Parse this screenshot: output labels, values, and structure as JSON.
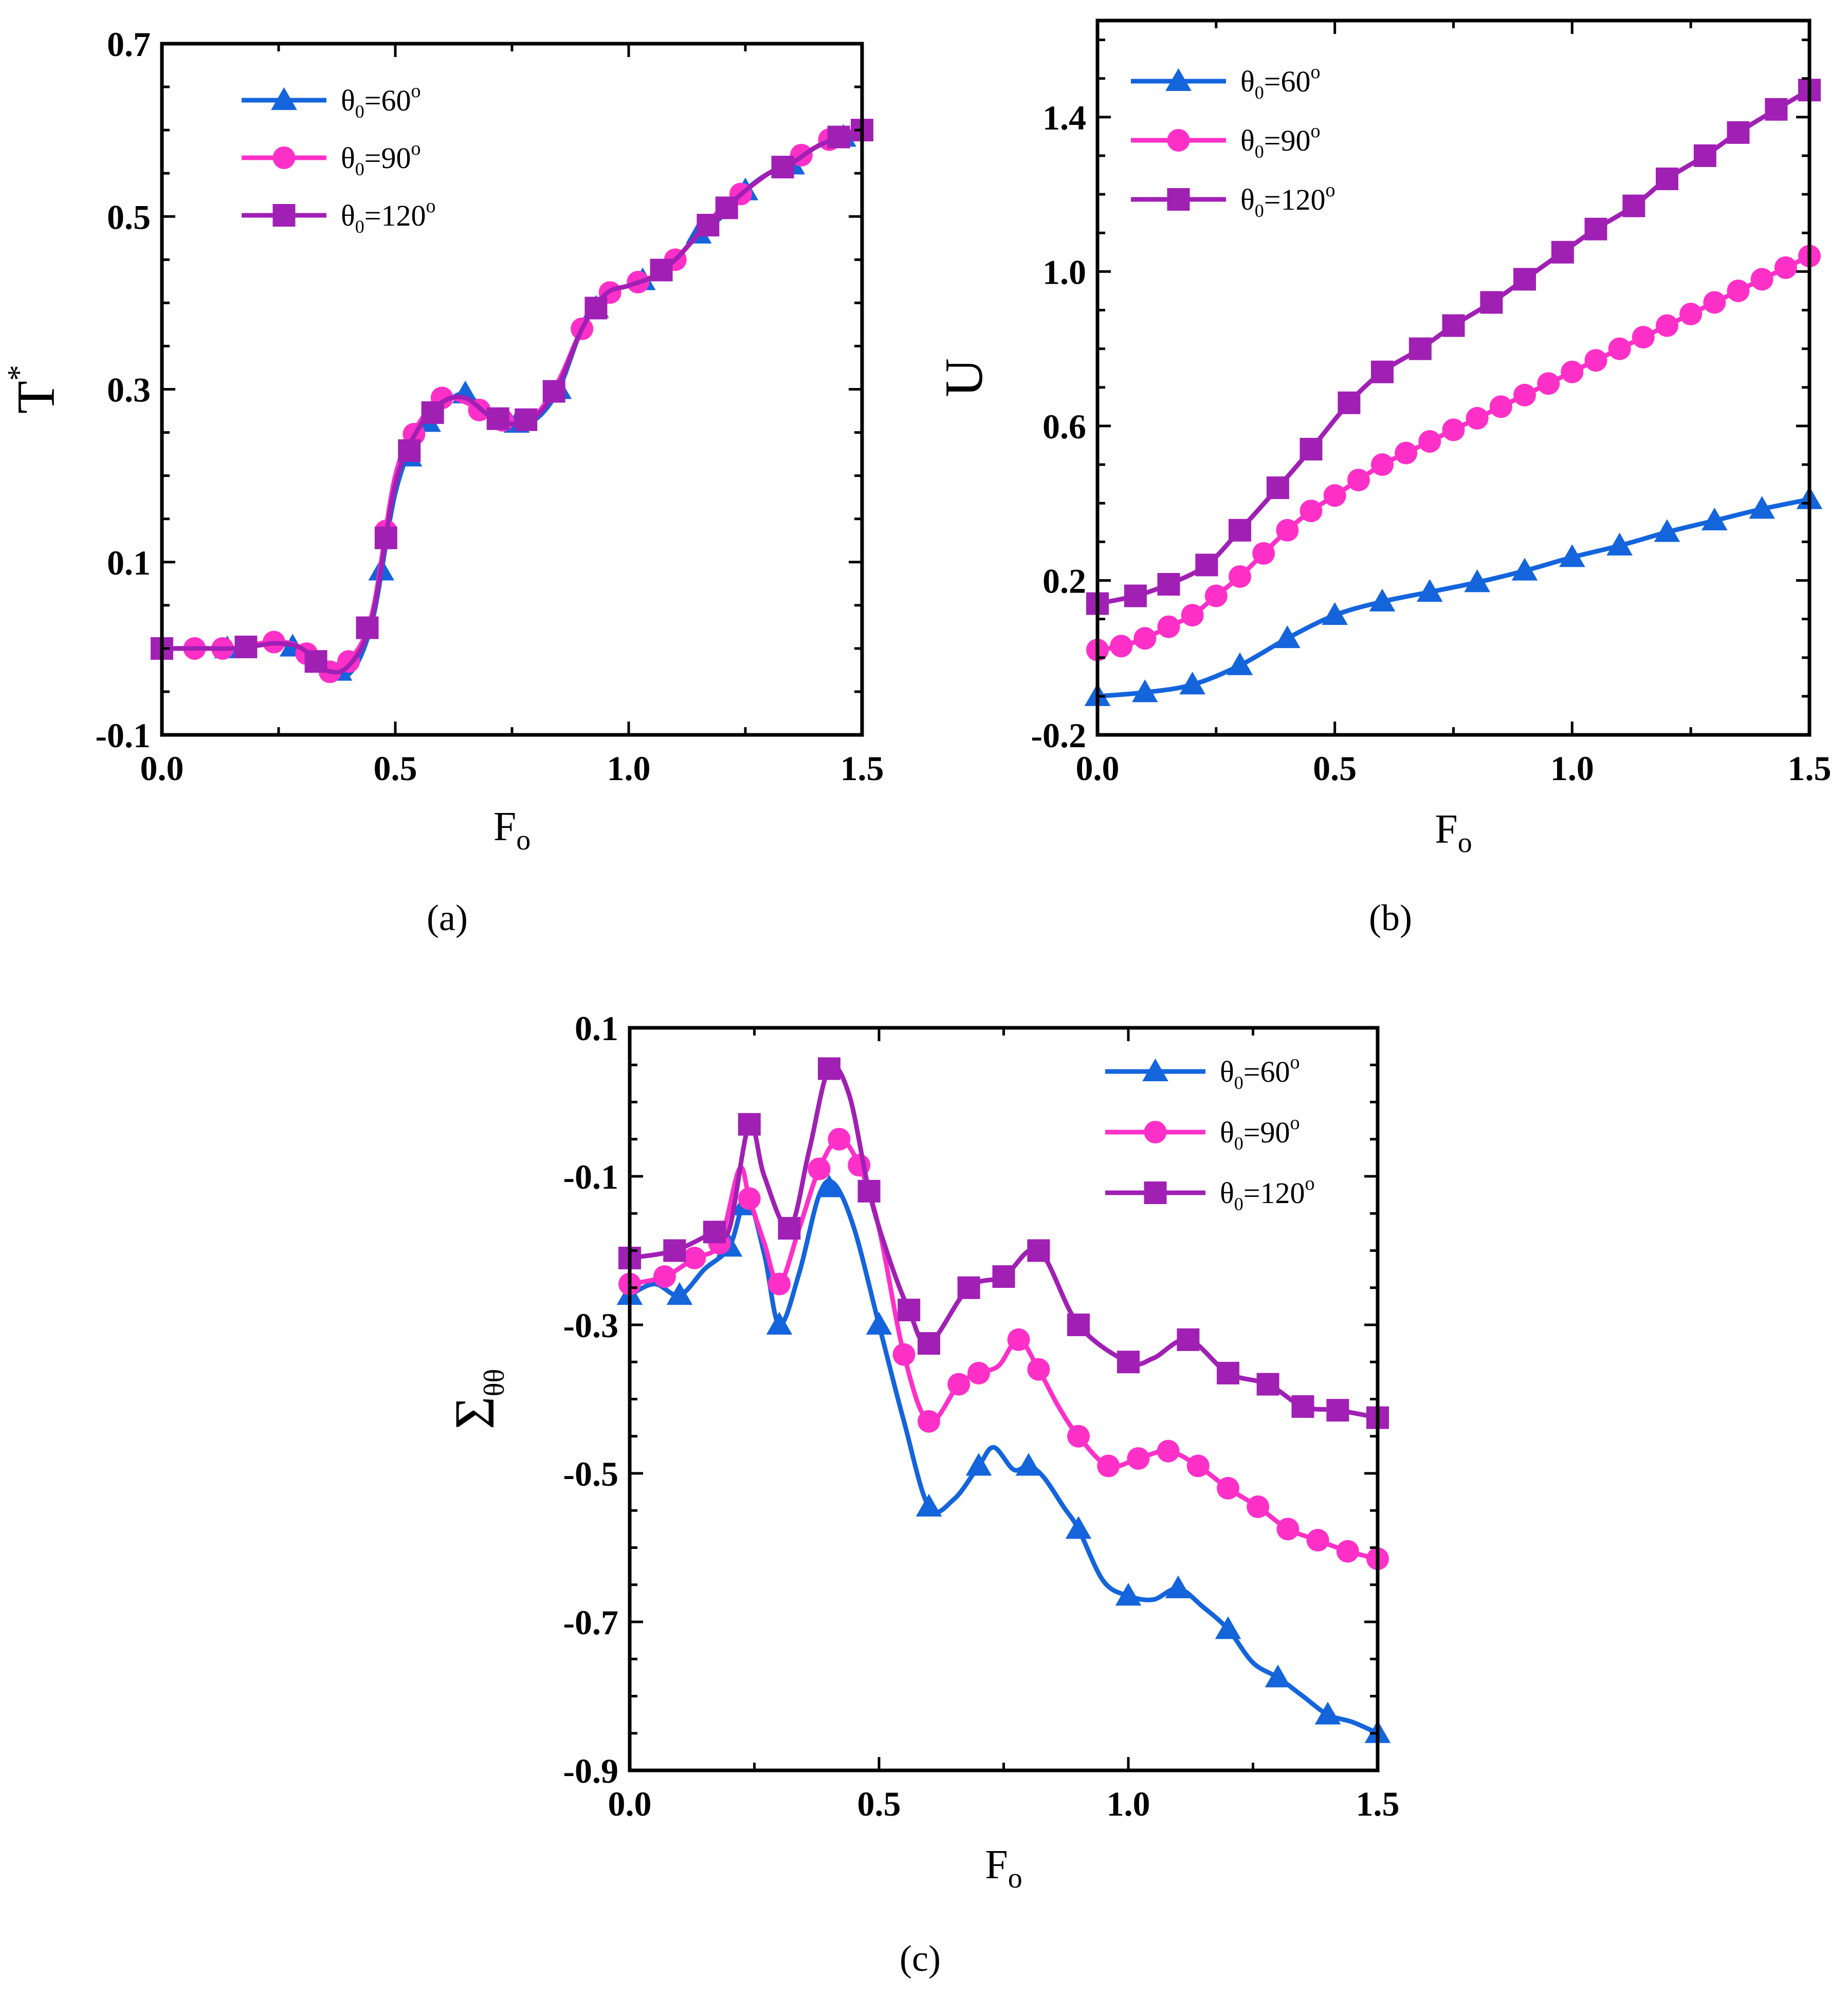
{
  "colors": {
    "s60": "#1464dc",
    "s90": "#ff30c8",
    "s120": "#a020b4"
  },
  "chart_data": [
    {
      "id": "a",
      "panel_label": "(a)",
      "type": "line",
      "xlabel": {
        "main": "F",
        "sub": "o"
      },
      "ylabel": {
        "main": "T",
        "sup": "*"
      },
      "xlim": [
        0,
        1.5
      ],
      "ylim": [
        -0.1,
        0.7
      ],
      "xticks": [
        "0.0",
        "0.5",
        "1.0",
        "1.5"
      ],
      "yticks": [
        "-0.1",
        "0.1",
        "0.3",
        "0.5",
        "0.7"
      ],
      "legend": "top-left",
      "series": [
        {
          "name": "θ0=60°",
          "lg_main": "θ",
          "lg_sub": "0",
          "lg_rest": "=60",
          "lg_sup": "o",
          "marker": "triangle",
          "color_key": "s60",
          "x": [
            0,
            0.05,
            0.1,
            0.15,
            0.2,
            0.25,
            0.3,
            0.35,
            0.4,
            0.45,
            0.5,
            0.55,
            0.6,
            0.65,
            0.7,
            0.75,
            0.8,
            0.85,
            0.9,
            0.95,
            1.0,
            1.05,
            1.1,
            1.15,
            1.2,
            1.25,
            1.3,
            1.35,
            1.4,
            1.45,
            1.5
          ],
          "y": [
            0.0,
            0.0,
            0.0,
            0.0,
            0.005,
            0.005,
            0.0,
            -0.02,
            -0.03,
            0.03,
            0.18,
            0.25,
            0.28,
            0.295,
            0.27,
            0.26,
            0.265,
            0.3,
            0.37,
            0.41,
            0.42,
            0.43,
            0.45,
            0.48,
            0.5,
            0.53,
            0.55,
            0.56,
            0.58,
            0.59,
            0.6
          ],
          "marker_x": [
            0.14,
            0.28,
            0.38,
            0.47,
            0.53,
            0.57,
            0.65,
            0.76,
            0.85,
            0.93,
            1.03,
            1.15,
            1.25,
            1.35,
            1.46
          ]
        },
        {
          "name": "θ0=90°",
          "lg_main": "θ",
          "lg_sub": "0",
          "lg_rest": "=90",
          "lg_sup": "o",
          "marker": "circle",
          "color_key": "s90",
          "x": [
            0,
            0.05,
            0.1,
            0.15,
            0.2,
            0.25,
            0.3,
            0.35,
            0.4,
            0.45,
            0.5,
            0.55,
            0.6,
            0.65,
            0.7,
            0.75,
            0.8,
            0.85,
            0.9,
            0.95,
            1.0,
            1.05,
            1.1,
            1.15,
            1.2,
            1.25,
            1.3,
            1.35,
            1.4,
            1.45,
            1.5
          ],
          "y": [
            0.0,
            0.0,
            0.0,
            0.0,
            0.005,
            0.008,
            0.0,
            -0.03,
            -0.015,
            0.04,
            0.2,
            0.26,
            0.29,
            0.285,
            0.27,
            0.26,
            0.27,
            0.31,
            0.37,
            0.41,
            0.42,
            0.43,
            0.45,
            0.48,
            0.51,
            0.53,
            0.55,
            0.565,
            0.58,
            0.595,
            0.6
          ],
          "marker_x": [
            0,
            0.07,
            0.13,
            0.24,
            0.31,
            0.36,
            0.4,
            0.48,
            0.54,
            0.6,
            0.68,
            0.73,
            0.9,
            0.96,
            1.02,
            1.1,
            1.24,
            1.37,
            1.43,
            1.5
          ]
        },
        {
          "name": "θ0=120°",
          "lg_main": "θ",
          "lg_sub": "0",
          "lg_rest": "=120",
          "lg_sup": "o",
          "marker": "square",
          "color_key": "s120",
          "x": [
            0,
            0.05,
            0.1,
            0.15,
            0.2,
            0.25,
            0.3,
            0.35,
            0.4,
            0.45,
            0.5,
            0.55,
            0.6,
            0.65,
            0.7,
            0.75,
            0.8,
            0.85,
            0.9,
            0.95,
            1.0,
            1.05,
            1.1,
            1.15,
            1.2,
            1.25,
            1.3,
            1.35,
            1.4,
            1.45,
            1.5
          ],
          "y": [
            0.0,
            0.0,
            0.0,
            0.0,
            0.003,
            0.006,
            0.0,
            -0.025,
            -0.02,
            0.035,
            0.19,
            0.255,
            0.285,
            0.29,
            0.27,
            0.26,
            0.268,
            0.305,
            0.37,
            0.41,
            0.42,
            0.43,
            0.45,
            0.48,
            0.505,
            0.53,
            0.55,
            0.562,
            0.58,
            0.592,
            0.6
          ],
          "marker_x": [
            0,
            0.18,
            0.33,
            0.44,
            0.48,
            0.53,
            0.58,
            0.72,
            0.78,
            0.84,
            0.93,
            1.07,
            1.17,
            1.21,
            1.33,
            1.45,
            1.5
          ]
        }
      ]
    },
    {
      "id": "b",
      "panel_label": "(b)",
      "type": "line",
      "xlabel": {
        "main": "F",
        "sub": "o"
      },
      "ylabel": {
        "main": "U"
      },
      "xlim": [
        0,
        1.5
      ],
      "ylim": [
        -0.2,
        1.65
      ],
      "xticks": [
        "0.0",
        "0.5",
        "1.0",
        "1.5"
      ],
      "yticks": [
        "-0.2",
        "0.2",
        "0.6",
        "1.0",
        "1.4"
      ],
      "legend": "top-left",
      "series": [
        {
          "name": "θ0=60°",
          "lg_main": "θ",
          "lg_sub": "0",
          "lg_rest": "=60",
          "lg_sup": "o",
          "marker": "triangle",
          "color_key": "s60",
          "x": [
            0,
            0.1,
            0.2,
            0.3,
            0.4,
            0.5,
            0.6,
            0.7,
            0.8,
            0.9,
            1.0,
            1.1,
            1.2,
            1.3,
            1.4,
            1.5
          ],
          "y": [
            -0.1,
            -0.09,
            -0.07,
            -0.02,
            0.05,
            0.11,
            0.145,
            0.17,
            0.195,
            0.225,
            0.26,
            0.29,
            0.325,
            0.355,
            0.385,
            0.41
          ],
          "marker_x": [
            0,
            0.1,
            0.2,
            0.3,
            0.4,
            0.5,
            0.6,
            0.7,
            0.8,
            0.9,
            1.0,
            1.1,
            1.2,
            1.3,
            1.4,
            1.5
          ]
        },
        {
          "name": "θ0=90°",
          "lg_main": "θ",
          "lg_sub": "0",
          "lg_rest": "=90",
          "lg_sup": "o",
          "marker": "circle",
          "color_key": "s90",
          "x": [
            0,
            0.05,
            0.1,
            0.15,
            0.2,
            0.25,
            0.3,
            0.35,
            0.4,
            0.45,
            0.5,
            0.55,
            0.6,
            0.65,
            0.7,
            0.75,
            0.8,
            0.85,
            0.9,
            0.95,
            1.0,
            1.05,
            1.1,
            1.15,
            1.2,
            1.25,
            1.3,
            1.35,
            1.4,
            1.45,
            1.5
          ],
          "y": [
            0.02,
            0.03,
            0.05,
            0.08,
            0.11,
            0.16,
            0.21,
            0.27,
            0.33,
            0.38,
            0.42,
            0.46,
            0.5,
            0.53,
            0.56,
            0.59,
            0.62,
            0.65,
            0.68,
            0.71,
            0.74,
            0.77,
            0.8,
            0.83,
            0.86,
            0.89,
            0.92,
            0.95,
            0.98,
            1.01,
            1.04
          ],
          "marker_x": [
            0,
            0.05,
            0.1,
            0.15,
            0.2,
            0.25,
            0.3,
            0.35,
            0.4,
            0.45,
            0.5,
            0.55,
            0.6,
            0.65,
            0.7,
            0.75,
            0.8,
            0.85,
            0.9,
            0.95,
            1.0,
            1.05,
            1.1,
            1.15,
            1.2,
            1.25,
            1.3,
            1.35,
            1.4,
            1.45,
            1.5
          ]
        },
        {
          "name": "θ0=120°",
          "lg_main": "θ",
          "lg_sub": "0",
          "lg_rest": "=120",
          "lg_sup": "o",
          "marker": "square",
          "color_key": "s120",
          "x": [
            0,
            0.08,
            0.15,
            0.23,
            0.3,
            0.38,
            0.45,
            0.53,
            0.6,
            0.68,
            0.75,
            0.83,
            0.9,
            0.98,
            1.05,
            1.13,
            1.2,
            1.28,
            1.35,
            1.43,
            1.5
          ],
          "y": [
            0.14,
            0.16,
            0.19,
            0.24,
            0.33,
            0.44,
            0.54,
            0.66,
            0.74,
            0.8,
            0.86,
            0.92,
            0.98,
            1.05,
            1.11,
            1.17,
            1.24,
            1.3,
            1.36,
            1.42,
            1.47
          ],
          "marker_x": [
            0,
            0.08,
            0.15,
            0.23,
            0.3,
            0.38,
            0.45,
            0.53,
            0.6,
            0.68,
            0.75,
            0.83,
            0.9,
            0.98,
            1.05,
            1.13,
            1.2,
            1.28,
            1.35,
            1.43,
            1.5
          ]
        }
      ]
    },
    {
      "id": "c",
      "panel_label": "(c)",
      "type": "line",
      "xlabel": {
        "main": "F",
        "sub": "o"
      },
      "ylabel": {
        "main": "Σ",
        "sub": "θθ"
      },
      "xlim": [
        0,
        1.5
      ],
      "ylim": [
        -0.9,
        0.1
      ],
      "xticks": [
        "0.0",
        "0.5",
        "1.0",
        "1.5"
      ],
      "yticks": [
        "-0.9",
        "-0.7",
        "-0.5",
        "-0.3",
        "-0.1",
        "0.1"
      ],
      "legend": "top-right",
      "series": [
        {
          "name": "θ0=60°",
          "lg_main": "θ",
          "lg_sub": "0",
          "lg_rest": "=60",
          "lg_sup": "o",
          "marker": "triangle",
          "color_key": "s60",
          "x": [
            0,
            0.05,
            0.1,
            0.15,
            0.2,
            0.235,
            0.27,
            0.3,
            0.34,
            0.38,
            0.41,
            0.45,
            0.5,
            0.55,
            0.6,
            0.65,
            0.7,
            0.73,
            0.77,
            0.8,
            0.83,
            0.87,
            0.9,
            0.95,
            1.0,
            1.05,
            1.1,
            1.15,
            1.2,
            1.25,
            1.3,
            1.35,
            1.4,
            1.45,
            1.5
          ],
          "y": [
            -0.26,
            -0.245,
            -0.26,
            -0.225,
            -0.195,
            -0.13,
            -0.205,
            -0.3,
            -0.23,
            -0.125,
            -0.11,
            -0.17,
            -0.3,
            -0.43,
            -0.545,
            -0.535,
            -0.49,
            -0.465,
            -0.495,
            -0.49,
            -0.505,
            -0.545,
            -0.575,
            -0.645,
            -0.665,
            -0.67,
            -0.655,
            -0.68,
            -0.71,
            -0.755,
            -0.775,
            -0.8,
            -0.825,
            -0.835,
            -0.85
          ],
          "marker_x": [
            0,
            0.1,
            0.2,
            0.23,
            0.3,
            0.4,
            0.5,
            0.6,
            0.7,
            0.8,
            0.9,
            1.0,
            1.1,
            1.2,
            1.3,
            1.4,
            1.5
          ]
        },
        {
          "name": "θ0=90°",
          "lg_main": "θ",
          "lg_sub": "0",
          "lg_rest": "=90",
          "lg_sup": "o",
          "marker": "circle",
          "color_key": "s90",
          "x": [
            0,
            0.07,
            0.13,
            0.18,
            0.22,
            0.24,
            0.27,
            0.3,
            0.34,
            0.38,
            0.42,
            0.46,
            0.5,
            0.55,
            0.6,
            0.66,
            0.7,
            0.74,
            0.78,
            0.82,
            0.86,
            0.9,
            0.96,
            1.02,
            1.08,
            1.14,
            1.2,
            1.26,
            1.32,
            1.38,
            1.44,
            1.5
          ],
          "y": [
            -0.245,
            -0.235,
            -0.21,
            -0.19,
            -0.09,
            -0.13,
            -0.19,
            -0.245,
            -0.17,
            -0.09,
            -0.05,
            -0.085,
            -0.17,
            -0.34,
            -0.43,
            -0.38,
            -0.365,
            -0.355,
            -0.32,
            -0.36,
            -0.41,
            -0.45,
            -0.49,
            -0.48,
            -0.47,
            -0.49,
            -0.52,
            -0.545,
            -0.575,
            -0.59,
            -0.605,
            -0.615
          ],
          "marker_x": [
            0,
            0.07,
            0.13,
            0.18,
            0.24,
            0.3,
            0.38,
            0.42,
            0.46,
            0.55,
            0.6,
            0.66,
            0.7,
            0.78,
            0.82,
            0.9,
            0.96,
            1.02,
            1.08,
            1.14,
            1.2,
            1.26,
            1.32,
            1.38,
            1.44,
            1.5
          ]
        },
        {
          "name": "θ0=120°",
          "lg_main": "θ",
          "lg_sub": "0",
          "lg_rest": "=120",
          "lg_sup": "o",
          "marker": "square",
          "color_key": "s120",
          "x": [
            0,
            0.09,
            0.17,
            0.2,
            0.24,
            0.27,
            0.32,
            0.36,
            0.4,
            0.44,
            0.48,
            0.52,
            0.56,
            0.6,
            0.68,
            0.75,
            0.82,
            0.9,
            1.0,
            1.05,
            1.12,
            1.2,
            1.28,
            1.35,
            1.42,
            1.5
          ],
          "y": [
            -0.21,
            -0.2,
            -0.175,
            -0.17,
            -0.03,
            -0.1,
            -0.17,
            -0.065,
            0.045,
            0.01,
            -0.12,
            -0.21,
            -0.28,
            -0.325,
            -0.25,
            -0.235,
            -0.2,
            -0.3,
            -0.35,
            -0.345,
            -0.32,
            -0.365,
            -0.38,
            -0.41,
            -0.415,
            -0.425
          ],
          "marker_x": [
            0,
            0.09,
            0.17,
            0.24,
            0.32,
            0.4,
            0.48,
            0.56,
            0.6,
            0.68,
            0.75,
            0.82,
            0.9,
            1.0,
            1.12,
            1.2,
            1.28,
            1.35,
            1.42,
            1.5
          ]
        }
      ]
    }
  ]
}
